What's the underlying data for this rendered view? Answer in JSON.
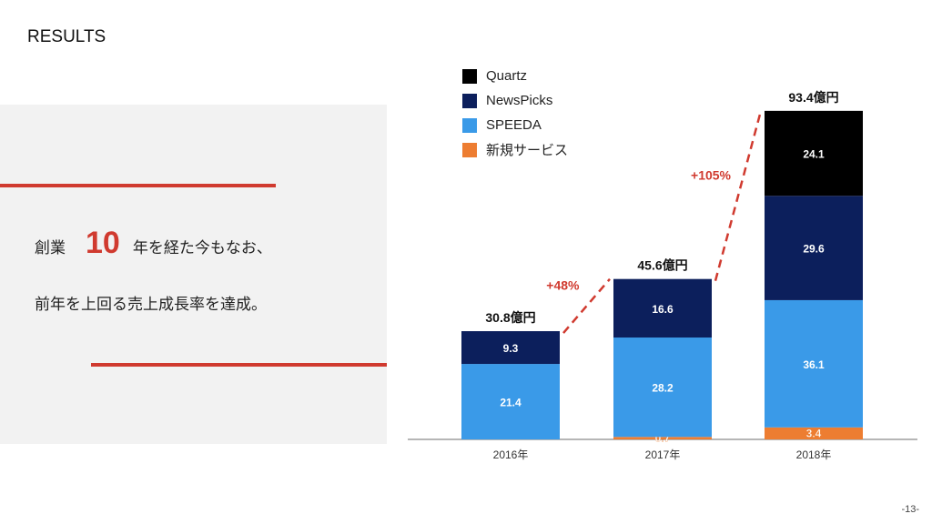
{
  "page": {
    "title": "RESULTS",
    "page_number": "-13-"
  },
  "text": {
    "line1_prefix": "創業",
    "line1_number": "10",
    "line1_suffix": "年を経た今もなお、",
    "line2": "前年を上回る売上成長率を達成。"
  },
  "colors": {
    "accent": "#d03a2f",
    "panel": "#f2f2f2"
  },
  "chart_data": {
    "type": "bar",
    "stacked": true,
    "categories": [
      "2016年",
      "2017年",
      "2018年"
    ],
    "series": [
      {
        "name": "新規サービス",
        "color": "#ed7d31",
        "values": [
          0,
          0.7,
          3.4
        ],
        "labels": [
          "",
          "0.7",
          "3.4"
        ]
      },
      {
        "name": "SPEEDA",
        "color": "#3a9ae8",
        "values": [
          21.4,
          28.2,
          36.1
        ],
        "labels": [
          "21.4",
          "28.2",
          "36.1"
        ]
      },
      {
        "name": "NewsPicks",
        "color": "#0c1f5c",
        "values": [
          9.3,
          16.6,
          29.6
        ],
        "labels": [
          "9.3",
          "16.6",
          "29.6"
        ]
      },
      {
        "name": "Quartz",
        "color": "#000000",
        "values": [
          0,
          0,
          24.1
        ],
        "labels": [
          "",
          "",
          "24.1"
        ]
      }
    ],
    "totals": [
      "30.8億円",
      "45.6億円",
      "93.4億円"
    ],
    "growth": [
      "+48%",
      "+105%"
    ],
    "legend": [
      "Quartz",
      "NewsPicks",
      "SPEEDA",
      "新規サービス"
    ],
    "legend_position": "top-center"
  }
}
